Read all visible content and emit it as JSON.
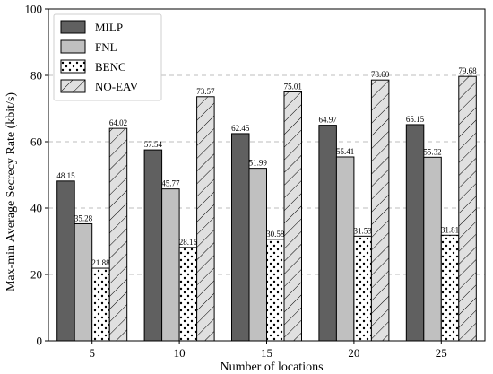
{
  "chart_data": {
    "type": "bar",
    "xlabel": "Number of locations",
    "ylabel": "Max-min Average Secrecy Rate (kbit/s)",
    "categories": [
      "5",
      "10",
      "15",
      "20",
      "25"
    ],
    "ylim": [
      0,
      100
    ],
    "yticks": [
      0,
      20,
      40,
      60,
      80,
      100
    ],
    "grid": "y-dashed",
    "legend_position": "top-left",
    "series": [
      {
        "name": "MILP",
        "values": [
          48.15,
          57.54,
          62.45,
          64.97,
          65.15
        ],
        "labels": [
          "48.15",
          "57.54",
          "62.45",
          "64.97",
          "65.15"
        ],
        "color": "#606060",
        "pattern": "solid"
      },
      {
        "name": "FNL",
        "values": [
          35.28,
          45.77,
          51.99,
          55.41,
          55.32
        ],
        "labels": [
          "35.28",
          "45.77",
          "51.99",
          "55.41",
          "55.32"
        ],
        "color": "#c0c0c0",
        "pattern": "solid"
      },
      {
        "name": "BENC",
        "values": [
          21.88,
          28.15,
          30.58,
          31.53,
          31.81
        ],
        "labels": [
          "21.88",
          "28.15",
          "30.58",
          "31.53",
          "31.81"
        ],
        "color": "#ffffff",
        "pattern": "dots"
      },
      {
        "name": "NO-EAV",
        "values": [
          64.02,
          73.57,
          75.01,
          78.6,
          79.68
        ],
        "labels": [
          "64.02",
          "73.57",
          "75.01",
          "78.60",
          "79.68"
        ],
        "color": "#e0e0e0",
        "pattern": "hatch"
      }
    ]
  }
}
